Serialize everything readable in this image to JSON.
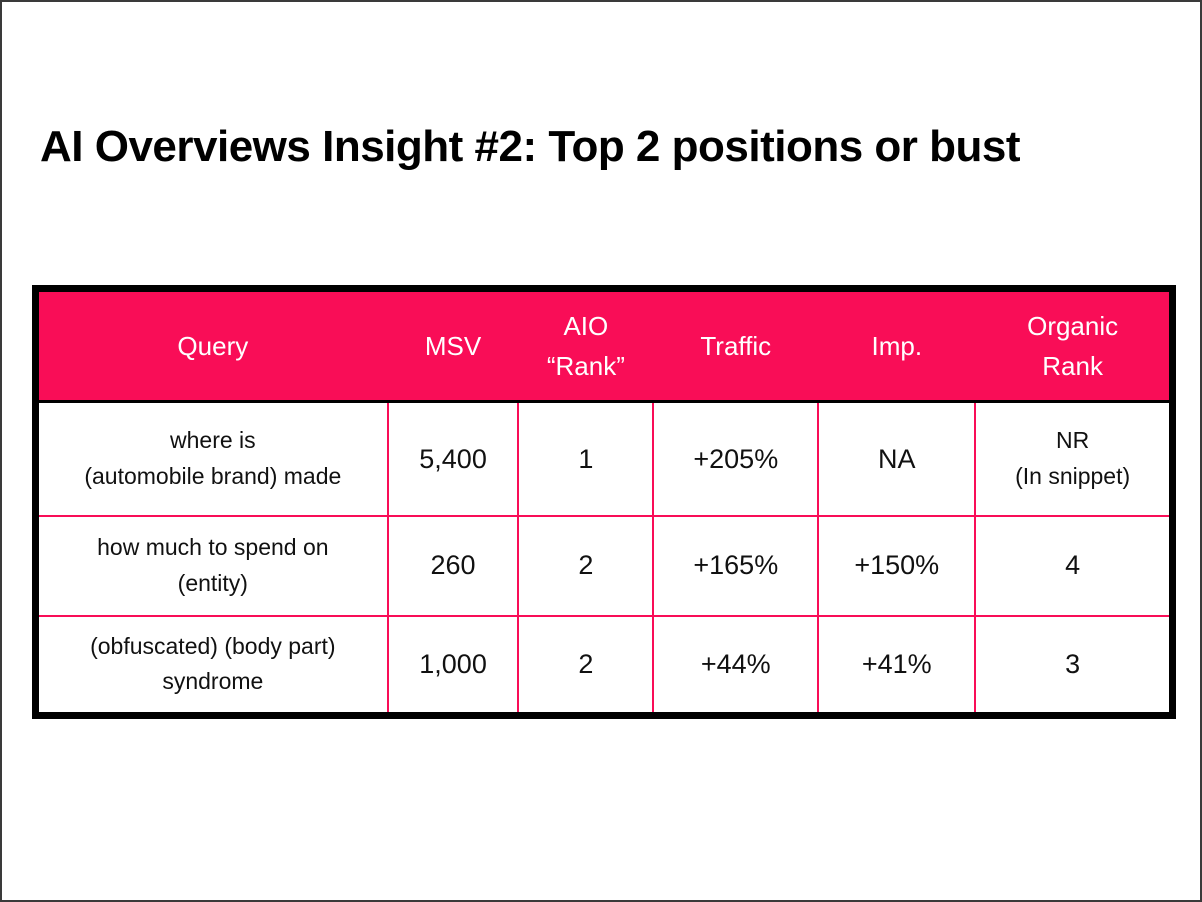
{
  "slide": {
    "title": "AI Overviews Insight #2: Top 2 positions or bust"
  },
  "colors": {
    "accent_pink": "#f90d57",
    "table_outer_border": "#000000",
    "header_text": "#ffffff",
    "body_text": "#111111"
  },
  "table": {
    "header": [
      "Query",
      "MSV",
      "AIO\n“Rank”",
      "Traffic",
      "Imp.",
      "Organic\nRank"
    ],
    "rows": [
      [
        "where is\n(automobile brand) made",
        "5,400",
        "1",
        "+205%",
        "NA",
        "NR\n(In snippet)"
      ],
      [
        "how much to spend on\n(entity)",
        "260",
        "2",
        "+165%",
        "+150%",
        "4"
      ],
      [
        "(obfuscated) (body part)\nsyndrome",
        "1,000",
        "2",
        "+44%",
        "+41%",
        "3"
      ]
    ]
  }
}
